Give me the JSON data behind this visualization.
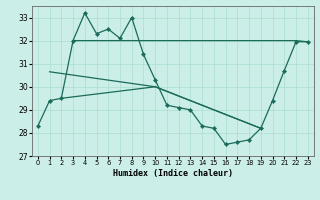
{
  "xlabel": "Humidex (Indice chaleur)",
  "background_color": "#cceee8",
  "grid_color": "#aaddcc",
  "line_color": "#1a6b5a",
  "xlim": [
    -0.5,
    23.5
  ],
  "ylim": [
    27,
    33.5
  ],
  "yticks": [
    27,
    28,
    29,
    30,
    31,
    32,
    33
  ],
  "xticks": [
    0,
    1,
    2,
    3,
    4,
    5,
    6,
    7,
    8,
    9,
    10,
    11,
    12,
    13,
    14,
    15,
    16,
    17,
    18,
    19,
    20,
    21,
    22,
    23
  ],
  "series_jagged": {
    "x": [
      0,
      1,
      2,
      3,
      4,
      5,
      6,
      7,
      8,
      9,
      10,
      11,
      12,
      13,
      14,
      15,
      16,
      17,
      18,
      19,
      20,
      21,
      22,
      23
    ],
    "y": [
      28.3,
      29.4,
      29.5,
      32.0,
      33.2,
      32.3,
      32.5,
      32.1,
      33.0,
      31.4,
      30.3,
      29.2,
      29.1,
      29.0,
      28.3,
      28.2,
      27.5,
      27.6,
      27.7,
      28.2,
      29.4,
      30.7,
      31.95,
      31.95
    ]
  },
  "series_trend_upper": {
    "x": [
      1,
      10,
      19
    ],
    "y": [
      30.65,
      30.0,
      28.2
    ]
  },
  "series_trend_lower": {
    "x": [
      2,
      10,
      19
    ],
    "y": [
      29.5,
      30.0,
      28.2
    ]
  },
  "series_flat": {
    "x": [
      3,
      22,
      23
    ],
    "y": [
      32.0,
      32.0,
      31.95
    ]
  }
}
